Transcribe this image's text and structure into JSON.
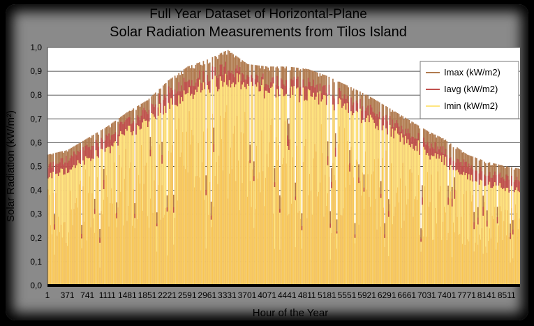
{
  "chart_data": {
    "type": "area",
    "title_line1": "Full Year Dataset of Horizontal-Plane",
    "title_line2": "Solar Radiation Measurements from Tilos Island",
    "xlabel": "Hour of the Year",
    "ylabel": "Solar Radiation (kW/m²)",
    "ylim": [
      0,
      1.0
    ],
    "xlim": [
      1,
      8760
    ],
    "grid": true,
    "legend_position": "top-right",
    "y_ticks": [
      "0,0",
      "0,1",
      "0,2",
      "0,3",
      "0,4",
      "0,5",
      "0,6",
      "0,7",
      "0,8",
      "0,9",
      "1,0"
    ],
    "x_ticks": [
      1,
      371,
      741,
      1111,
      1481,
      1851,
      2221,
      2591,
      2961,
      3331,
      3701,
      4071,
      4441,
      4811,
      5181,
      5551,
      5921,
      6291,
      6661,
      7031,
      7401,
      7771,
      8141,
      8511
    ],
    "series": [
      {
        "name": "Imax (kW/m2)",
        "color": "#b07a4e",
        "envelope_x": [
          1,
          371,
          741,
          1111,
          1481,
          1851,
          2221,
          2591,
          2961,
          3331,
          3701,
          4071,
          4441,
          4811,
          5181,
          5551,
          5921,
          6291,
          6661,
          7031,
          7401,
          7771,
          8141,
          8511,
          8760
        ],
        "envelope_y": [
          0.55,
          0.57,
          0.62,
          0.67,
          0.73,
          0.78,
          0.86,
          0.92,
          0.95,
          0.99,
          0.93,
          0.92,
          0.92,
          0.91,
          0.88,
          0.84,
          0.8,
          0.75,
          0.7,
          0.65,
          0.61,
          0.55,
          0.52,
          0.5,
          0.49
        ]
      },
      {
        "name": "Iavg (kW/m2)",
        "color": "#c0504d",
        "envelope_x": [
          1,
          371,
          741,
          1111,
          1481,
          1851,
          2221,
          2591,
          2961,
          3331,
          3701,
          4071,
          4441,
          4811,
          5181,
          5551,
          5921,
          6291,
          6661,
          7031,
          7401,
          7771,
          8141,
          8511,
          8760
        ],
        "envelope_y": [
          0.52,
          0.55,
          0.6,
          0.65,
          0.71,
          0.76,
          0.84,
          0.89,
          0.92,
          0.95,
          0.9,
          0.89,
          0.89,
          0.88,
          0.85,
          0.82,
          0.77,
          0.72,
          0.67,
          0.62,
          0.58,
          0.52,
          0.49,
          0.47,
          0.46
        ]
      },
      {
        "name": "Imin (kW/m2)",
        "color": "#ffe680",
        "envelope_x": [
          1,
          371,
          741,
          1111,
          1481,
          1851,
          2221,
          2591,
          2961,
          3331,
          3701,
          4071,
          4441,
          4811,
          5181,
          5551,
          5921,
          6291,
          6661,
          7031,
          7401,
          7771,
          8141,
          8511,
          8760
        ],
        "envelope_y": [
          0.48,
          0.51,
          0.56,
          0.61,
          0.68,
          0.73,
          0.8,
          0.86,
          0.89,
          0.91,
          0.88,
          0.87,
          0.86,
          0.85,
          0.82,
          0.79,
          0.74,
          0.69,
          0.64,
          0.59,
          0.55,
          0.48,
          0.45,
          0.43,
          0.42
        ]
      }
    ]
  }
}
